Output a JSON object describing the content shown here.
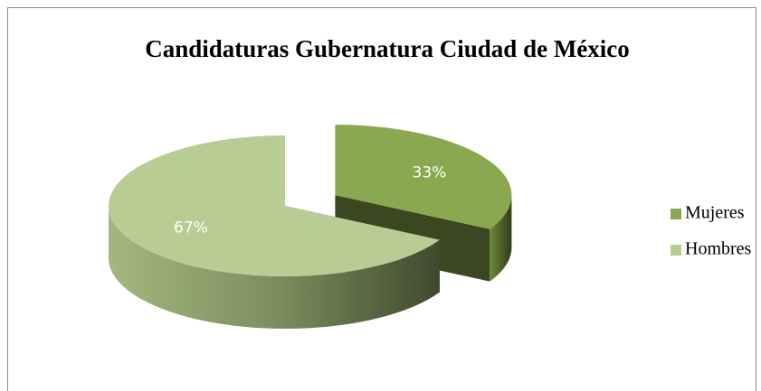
{
  "chart_data": {
    "type": "pie3d",
    "title": "Candidaturas Gubernatura Ciudad de México",
    "categories": [
      "Mujeres",
      "Hombres"
    ],
    "values": [
      33,
      67
    ],
    "value_labels": [
      "33%",
      "67%"
    ],
    "colors": [
      "#8aa84f",
      "#b7cd94"
    ],
    "legend": "right"
  }
}
